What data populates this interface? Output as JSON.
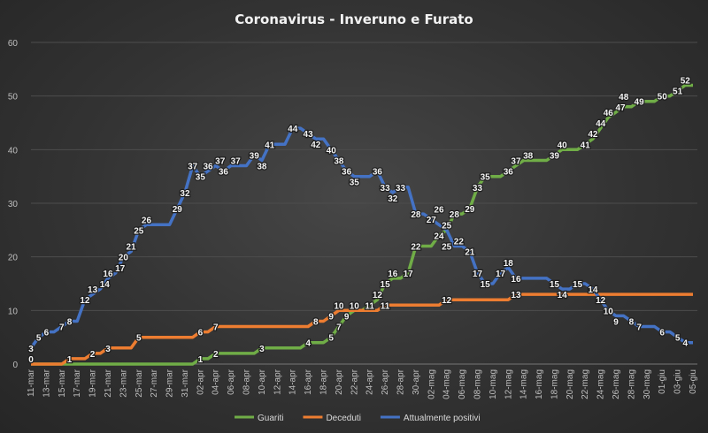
{
  "chart_data": {
    "type": "line",
    "title": "Coronavirus  - Inveruno  e Furato",
    "xlabel": "",
    "ylabel": "",
    "ylim": [
      0,
      60
    ],
    "yticks": [
      "0",
      "10",
      "20",
      "30",
      "40",
      "50",
      "60"
    ],
    "grid": true,
    "legend": "bottom",
    "x_ticks": [
      "11-mar",
      "13-mar",
      "15-mar",
      "17-mar",
      "19-mar",
      "21-mar",
      "23-mar",
      "25-mar",
      "27-mar",
      "29-mar",
      "31-mar",
      "02-apr",
      "04-apr",
      "06-apr",
      "08-apr",
      "10-apr",
      "12-apr",
      "14-apr",
      "16-apr",
      "18-apr",
      "20-apr",
      "22-apr",
      "24-apr",
      "26-apr",
      "28-apr",
      "30-apr",
      "02-mag",
      "04-mag",
      "06-mag",
      "08-mag",
      "10-mag",
      "12-mag",
      "14-mag",
      "16-mag",
      "18-mag",
      "20-mag",
      "22-mag",
      "24-mag",
      "26-mag",
      "28-mag",
      "30-mag",
      "01-giu",
      "03-giu",
      "05-giu"
    ],
    "x_start": "11-mar",
    "x_end": "05-giu",
    "series": [
      {
        "name": "Guariti",
        "color": "#70ad47",
        "values": [
          0,
          0,
          0,
          0,
          0,
          0,
          0,
          0,
          0,
          0,
          0,
          0,
          0,
          0,
          0,
          0,
          0,
          0,
          0,
          0,
          0,
          0,
          1,
          1,
          2,
          2,
          2,
          2,
          2,
          2,
          3,
          3,
          3,
          3,
          3,
          3,
          4,
          4,
          4,
          5,
          7,
          9,
          10,
          10,
          11,
          12,
          15,
          16,
          16,
          17,
          22,
          22,
          22,
          24,
          25,
          28,
          28,
          29,
          33,
          35,
          35,
          35,
          36,
          37,
          38,
          38,
          38,
          38,
          39,
          40,
          40,
          40,
          41,
          42,
          44,
          46,
          47,
          48,
          48,
          49,
          49,
          49,
          50,
          50,
          51,
          52,
          52
        ]
      },
      {
        "name": "Deceduti",
        "color": "#ed7d31",
        "values": [
          0,
          0,
          0,
          0,
          0,
          1,
          1,
          1,
          2,
          2,
          3,
          3,
          3,
          3,
          5,
          5,
          5,
          5,
          5,
          5,
          5,
          5,
          6,
          6,
          7,
          7,
          7,
          7,
          7,
          7,
          7,
          7,
          7,
          7,
          7,
          7,
          7,
          8,
          8,
          9,
          10,
          10,
          10,
          10,
          10,
          10,
          11,
          11,
          11,
          11,
          11,
          11,
          11,
          11,
          12,
          12,
          12,
          12,
          12,
          12,
          12,
          12,
          12,
          13,
          13,
          13,
          13,
          13,
          13,
          13,
          13,
          13,
          13,
          13,
          13,
          13,
          13,
          13,
          13,
          13,
          13,
          13,
          13,
          13,
          13,
          13,
          13
        ]
      },
      {
        "name": "Attualmente positivi",
        "color": "#4472c4",
        "values": [
          3,
          5,
          6,
          6,
          7,
          8,
          8,
          12,
          13,
          14,
          16,
          17,
          20,
          21,
          25,
          26,
          26,
          26,
          26,
          29,
          32,
          37,
          35,
          36,
          37,
          36,
          37,
          37,
          37,
          39,
          38,
          41,
          41,
          41,
          44,
          44,
          43,
          42,
          42,
          40,
          38,
          36,
          35,
          35,
          35,
          36,
          33,
          32,
          33,
          33,
          28,
          28,
          27,
          26,
          25,
          22,
          22,
          21,
          17,
          15,
          15,
          17,
          18,
          16,
          16,
          16,
          16,
          16,
          15,
          14,
          14,
          15,
          15,
          14,
          12,
          10,
          9,
          9,
          8,
          7,
          7,
          7,
          6,
          6,
          5,
          4,
          4
        ]
      }
    ]
  }
}
